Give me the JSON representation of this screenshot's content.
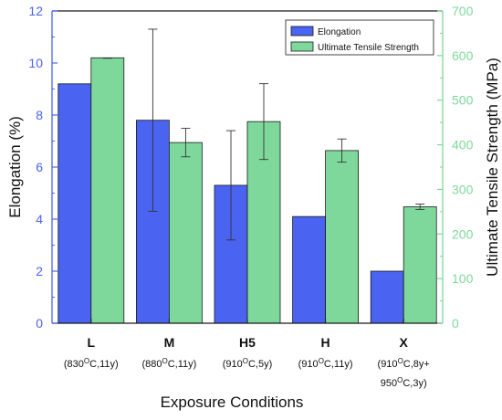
{
  "chart_data": {
    "type": "bar",
    "categories": [
      {
        "name": "L",
        "sub": [
          "(830",
          "O",
          "C,11y)"
        ],
        "sub2": null
      },
      {
        "name": "M",
        "sub": [
          "(880",
          "O",
          "C,11y)"
        ],
        "sub2": null
      },
      {
        "name": "H5",
        "sub": [
          "(910",
          "O",
          "C,5y)"
        ],
        "sub2": null
      },
      {
        "name": "H",
        "sub": [
          "(910",
          "O",
          "C,11y)"
        ],
        "sub2": null
      },
      {
        "name": "X",
        "sub": [
          "(910",
          "O",
          "C,8y+"
        ],
        "sub2": [
          "950",
          "O",
          "C,3y)"
        ]
      }
    ],
    "series": [
      {
        "name": "Elongation",
        "axis": "left",
        "color": "#4a63f0",
        "values": [
          9.2,
          7.8,
          5.3,
          4.1,
          2.0
        ],
        "errors": [
          0.0,
          3.5,
          2.1,
          0.0,
          0.0
        ]
      },
      {
        "name": "Ultimate Tensile Strength",
        "axis": "right",
        "color": "#7fd89b",
        "values": [
          595,
          405,
          452,
          387,
          261
        ],
        "errors": [
          0,
          32,
          85,
          26,
          6
        ]
      }
    ],
    "xlabel": "Exposure Conditions",
    "ylabel_left": "Elongation (%)",
    "ylabel_right": "Ultimate Tensile Strength (MPa)",
    "ylim_left": [
      0,
      12
    ],
    "ylim_right": [
      0,
      700
    ],
    "yticks_left": [
      "0",
      "2",
      "4",
      "6",
      "8",
      "10",
      "12"
    ],
    "yticks_right": [
      "0",
      "100",
      "200",
      "300",
      "400",
      "500",
      "600",
      "700"
    ],
    "left_axis_color": "#4a63f0",
    "right_axis_color": "#7fd89b",
    "legend_position": "top-right",
    "grid": false
  }
}
